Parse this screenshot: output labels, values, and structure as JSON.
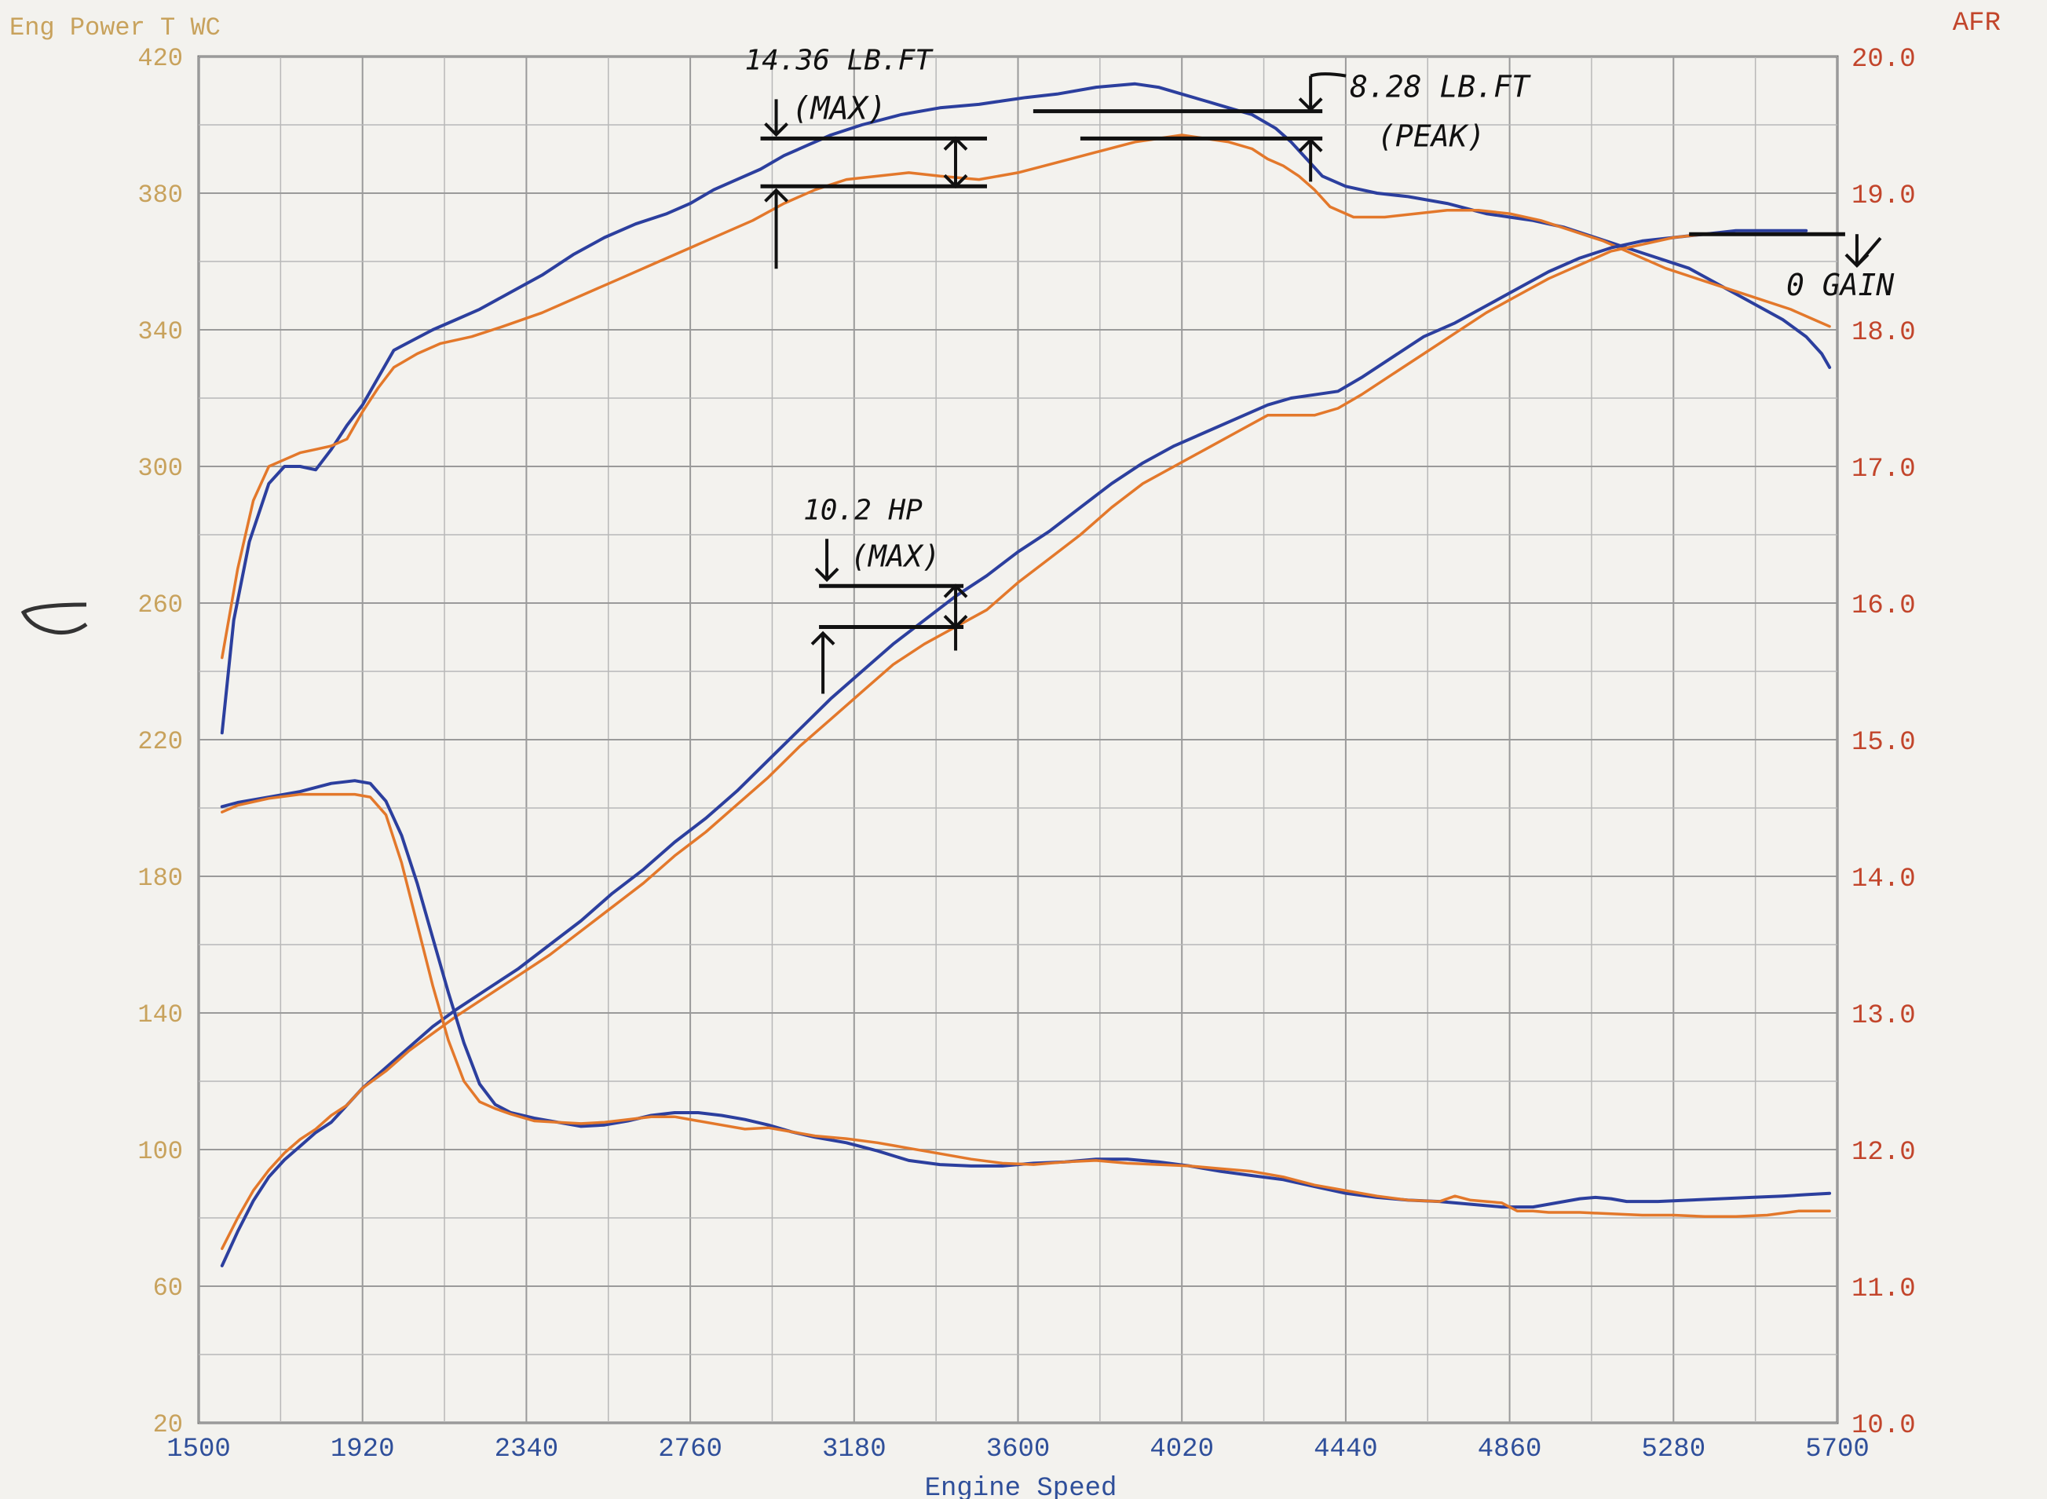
{
  "chart_data": {
    "type": "line",
    "title": "",
    "left_axis_label": "Eng Power T WC",
    "right_axis_label": "AFR",
    "xlabel": "Engine Speed",
    "x_ticks": [
      "1500",
      "1920",
      "2340",
      "2760",
      "3180",
      "3600",
      "4020",
      "4440",
      "4860",
      "5280",
      "5700"
    ],
    "y_left_ticks": [
      "420",
      "380",
      "340",
      "300",
      "260",
      "220",
      "180",
      "140",
      "100",
      "60",
      "20"
    ],
    "y_right_ticks": [
      "20.0",
      "19.0",
      "18.0",
      "17.0",
      "16.0",
      "15.0",
      "14.0",
      "13.0",
      "12.0",
      "11.0",
      "10.0"
    ],
    "xlim": [
      1500,
      5700
    ],
    "ylim_left": [
      20,
      420
    ],
    "ylim_right": [
      10.0,
      20.0
    ],
    "grid": true,
    "colors": {
      "blue": "#2c3f9e",
      "orange": "#e3782b",
      "grid": "#9a9a9a",
      "left_axis": "#c8a25c",
      "right_axis": "#c2452b",
      "x_axis": "#2f4f9a"
    },
    "series": [
      {
        "group": "torque",
        "color": "blue",
        "axis": "left",
        "x": [
          1560,
          1590,
          1630,
          1680,
          1720,
          1760,
          1800,
          1840,
          1880,
          1920,
          1960,
          2000,
          2050,
          2100,
          2160,
          2220,
          2300,
          2380,
          2460,
          2540,
          2620,
          2700,
          2760,
          2820,
          2880,
          2940,
          3000,
          3060,
          3120,
          3200,
          3300,
          3400,
          3500,
          3560,
          3620,
          3700,
          3800,
          3900,
          3960,
          4020,
          4080,
          4140,
          4200,
          4260,
          4300,
          4340,
          4380,
          4440,
          4520,
          4600,
          4700,
          4800,
          4860,
          4920,
          5000,
          5080,
          5160,
          5240,
          5320,
          5400,
          5480,
          5560,
          5620,
          5660,
          5680
        ],
        "y": [
          222,
          255,
          278,
          295,
          300,
          300,
          299,
          305,
          312,
          318,
          326,
          334,
          337,
          340,
          343,
          346,
          351,
          356,
          362,
          367,
          371,
          374,
          377,
          381,
          384,
          387,
          391,
          394,
          397,
          400,
          403,
          405,
          406,
          407,
          408,
          409,
          411,
          412,
          411,
          409,
          407,
          405,
          403,
          399,
          395,
          390,
          385,
          382,
          380,
          379,
          377,
          374,
          373,
          372,
          370,
          367,
          364,
          361,
          358,
          353,
          348,
          343,
          338,
          333,
          329
        ]
      },
      {
        "group": "torque",
        "color": "orange",
        "axis": "left",
        "x": [
          1560,
          1600,
          1640,
          1680,
          1720,
          1760,
          1800,
          1840,
          1880,
          1920,
          1960,
          2000,
          2060,
          2120,
          2200,
          2280,
          2380,
          2480,
          2580,
          2680,
          2760,
          2840,
          2920,
          3000,
          3080,
          3160,
          3240,
          3320,
          3400,
          3500,
          3600,
          3700,
          3800,
          3900,
          3960,
          4020,
          4080,
          4140,
          4200,
          4240,
          4280,
          4320,
          4360,
          4400,
          4460,
          4540,
          4620,
          4700,
          4780,
          4860,
          4940,
          5020,
          5100,
          5180,
          5260,
          5340,
          5420,
          5500,
          5580,
          5640,
          5680
        ],
        "y": [
          244,
          270,
          290,
          300,
          302,
          304,
          305,
          306,
          308,
          316,
          323,
          329,
          333,
          336,
          338,
          341,
          345,
          350,
          355,
          360,
          364,
          368,
          372,
          377,
          381,
          384,
          385,
          386,
          385,
          384,
          386,
          389,
          392,
          395,
          396,
          397,
          396,
          395,
          393,
          390,
          388,
          385,
          381,
          376,
          373,
          373,
          374,
          375,
          375,
          374,
          372,
          369,
          366,
          362,
          358,
          355,
          352,
          349,
          346,
          343,
          341
        ]
      },
      {
        "group": "horsepower",
        "color": "blue",
        "axis": "left",
        "x": [
          1560,
          1600,
          1640,
          1680,
          1720,
          1760,
          1800,
          1840,
          1880,
          1920,
          1980,
          2040,
          2100,
          2160,
          2240,
          2320,
          2400,
          2480,
          2560,
          2640,
          2720,
          2800,
          2880,
          2960,
          3040,
          3120,
          3200,
          3280,
          3360,
          3440,
          3520,
          3600,
          3680,
          3760,
          3840,
          3920,
          4000,
          4080,
          4160,
          4240,
          4300,
          4360,
          4420,
          4480,
          4560,
          4640,
          4720,
          4800,
          4880,
          4960,
          5040,
          5120,
          5200,
          5280,
          5360,
          5440,
          5520,
          5580,
          5620
        ],
        "y": [
          66,
          76,
          85,
          92,
          97,
          101,
          105,
          108,
          113,
          118,
          124,
          130,
          136,
          141,
          147,
          153,
          160,
          167,
          175,
          182,
          190,
          197,
          205,
          214,
          223,
          232,
          240,
          248,
          255,
          262,
          268,
          275,
          281,
          288,
          295,
          301,
          306,
          310,
          314,
          318,
          320,
          321,
          322,
          326,
          332,
          338,
          342,
          347,
          352,
          357,
          361,
          364,
          366,
          367,
          368,
          369,
          369,
          369,
          369
        ]
      },
      {
        "group": "horsepower",
        "color": "orange",
        "axis": "left",
        "x": [
          1560,
          1600,
          1640,
          1680,
          1720,
          1760,
          1800,
          1840,
          1880,
          1920,
          1980,
          2040,
          2100,
          2160,
          2240,
          2320,
          2400,
          2480,
          2560,
          2640,
          2720,
          2800,
          2880,
          2960,
          3040,
          3120,
          3200,
          3280,
          3360,
          3440,
          3520,
          3600,
          3680,
          3760,
          3840,
          3920,
          4000,
          4080,
          4160,
          4240,
          4300,
          4360,
          4420,
          4480,
          4560,
          4640,
          4720,
          4800,
          4880,
          4960,
          5040,
          5120,
          5200,
          5280,
          5360,
          5440,
          5520,
          5580,
          5620
        ],
        "y": [
          71,
          80,
          88,
          94,
          99,
          103,
          106,
          110,
          113,
          118,
          123,
          129,
          134,
          139,
          145,
          151,
          157,
          164,
          171,
          178,
          186,
          193,
          201,
          209,
          218,
          226,
          234,
          242,
          248,
          253,
          258,
          266,
          273,
          280,
          288,
          295,
          300,
          305,
          310,
          315,
          315,
          315,
          317,
          321,
          327,
          333,
          339,
          345,
          350,
          355,
          359,
          363,
          365,
          367,
          368,
          368,
          368,
          368,
          368
        ]
      },
      {
        "group": "afr",
        "color": "blue",
        "axis": "right",
        "x": [
          1560,
          1600,
          1680,
          1760,
          1840,
          1900,
          1940,
          1980,
          2020,
          2060,
          2100,
          2140,
          2180,
          2220,
          2260,
          2300,
          2360,
          2420,
          2480,
          2540,
          2600,
          2660,
          2720,
          2780,
          2840,
          2900,
          2960,
          3020,
          3080,
          3160,
          3240,
          3320,
          3400,
          3480,
          3560,
          3640,
          3720,
          3800,
          3880,
          3960,
          4040,
          4120,
          4200,
          4280,
          4360,
          4440,
          4520,
          4600,
          4680,
          4760,
          4840,
          4880,
          4920,
          4960,
          5000,
          5040,
          5080,
          5120,
          5160,
          5240,
          5320,
          5400,
          5480,
          5560,
          5620,
          5680
        ],
        "y": [
          14.51,
          14.54,
          14.58,
          14.62,
          14.68,
          14.7,
          14.68,
          14.55,
          14.3,
          13.95,
          13.55,
          13.15,
          12.78,
          12.48,
          12.33,
          12.27,
          12.23,
          12.2,
          12.17,
          12.18,
          12.21,
          12.25,
          12.27,
          12.27,
          12.25,
          12.22,
          12.18,
          12.13,
          12.09,
          12.05,
          11.99,
          11.92,
          11.89,
          11.88,
          11.88,
          11.9,
          11.91,
          11.93,
          11.93,
          11.91,
          11.88,
          11.84,
          11.81,
          11.78,
          11.73,
          11.68,
          11.65,
          11.63,
          11.62,
          11.6,
          11.58,
          11.58,
          11.58,
          11.6,
          11.62,
          11.64,
          11.65,
          11.64,
          11.62,
          11.62,
          11.63,
          11.64,
          11.65,
          11.66,
          11.67,
          11.68
        ]
      },
      {
        "group": "afr",
        "color": "orange",
        "axis": "right",
        "x": [
          1560,
          1600,
          1680,
          1760,
          1840,
          1900,
          1940,
          1980,
          2020,
          2060,
          2100,
          2140,
          2180,
          2220,
          2260,
          2300,
          2360,
          2420,
          2480,
          2540,
          2600,
          2660,
          2720,
          2780,
          2840,
          2900,
          2960,
          3020,
          3080,
          3160,
          3240,
          3320,
          3400,
          3480,
          3560,
          3640,
          3720,
          3800,
          3880,
          3960,
          4040,
          4120,
          4200,
          4280,
          4360,
          4440,
          4520,
          4600,
          4680,
          4720,
          4760,
          4800,
          4840,
          4880,
          4920,
          4960,
          5040,
          5120,
          5200,
          5280,
          5360,
          5440,
          5520,
          5600,
          5680
        ],
        "y": [
          14.47,
          14.52,
          14.57,
          14.6,
          14.6,
          14.6,
          14.58,
          14.45,
          14.1,
          13.65,
          13.2,
          12.8,
          12.5,
          12.35,
          12.3,
          12.26,
          12.21,
          12.2,
          12.19,
          12.2,
          12.22,
          12.24,
          12.24,
          12.21,
          12.18,
          12.15,
          12.16,
          12.13,
          12.1,
          12.08,
          12.05,
          12.01,
          11.97,
          11.93,
          11.9,
          11.89,
          11.91,
          11.92,
          11.9,
          11.89,
          11.88,
          11.86,
          11.84,
          11.8,
          11.74,
          11.7,
          11.66,
          11.63,
          11.62,
          11.66,
          11.63,
          11.62,
          11.61,
          11.55,
          11.55,
          11.54,
          11.54,
          11.53,
          11.52,
          11.52,
          11.51,
          11.51,
          11.52,
          11.55,
          11.55
        ]
      }
    ],
    "annotations": [
      {
        "id": "torque-max",
        "line1": "14.36 LB.FT",
        "line2": "(MAX)",
        "x1": 2940,
        "x2": 3440,
        "y_top": 396,
        "y_bottom": 382
      },
      {
        "id": "torque-peak",
        "line1": "8.28 LB.FT",
        "line2": "(PEAK)",
        "x1": 3800,
        "x2": 4360,
        "y_top": 404,
        "y_bottom": 396
      },
      {
        "id": "hp-max",
        "line1": "10.2 HP",
        "line2": "(MAX)",
        "x1": 3090,
        "x2": 3420,
        "y_top": 265,
        "y_bottom": 253
      },
      {
        "id": "hp-gain",
        "label": "0 GAIN",
        "x1": 5320,
        "x2": 5720,
        "y": 368
      }
    ]
  }
}
